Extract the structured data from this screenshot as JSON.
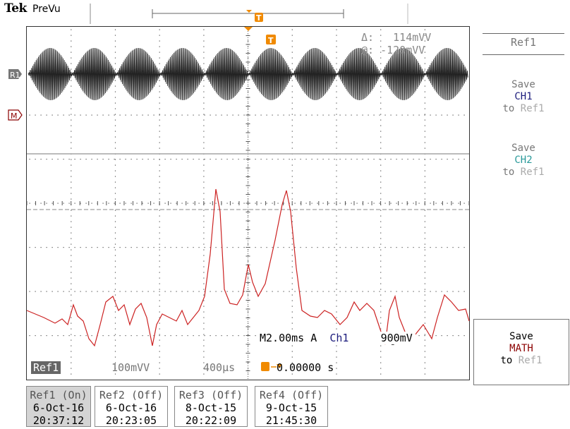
{
  "header": {
    "brand": "Tek",
    "mode": "PreVu"
  },
  "cursor": {
    "delta_label": "Δ:",
    "delta_value": "114mVV",
    "at_label": "@:",
    "at_value": "-120mVV"
  },
  "markers": {
    "ref1_marker": "R1",
    "math_marker": "M",
    "trigger_marker": "T"
  },
  "status": {
    "timebase": "M2.00ms",
    "trigger_mode": "A",
    "trigger_source": "Ch1",
    "trigger_slope": "⌠",
    "trigger_level": "900mV"
  },
  "ref_info": {
    "tag": "Ref1",
    "vscale": "100mVV",
    "hscale": "400µs",
    "trigger_pos_icon": "T→▾",
    "trigger_pos": "0.00000 s"
  },
  "side_menu": {
    "title": "Ref1",
    "save_ch1": {
      "l1": "Save",
      "l2": "CH1",
      "l3": "to",
      "l4": "Ref1"
    },
    "save_ch2": {
      "l1": "Save",
      "l2": "CH2",
      "l3": "to",
      "l4": "Ref1"
    },
    "save_math": {
      "l1": "Save",
      "l2": "MATH",
      "l3": "to",
      "l4": "Ref1"
    }
  },
  "ref_boxes": [
    {
      "name": "Ref1 (On)",
      "date": "6-Oct-16",
      "time": "20:37:12"
    },
    {
      "name": "Ref2 (Off)",
      "date": "6-Oct-16",
      "time": "20:23:05"
    },
    {
      "name": "Ref3 (Off)",
      "date": "8-Oct-15",
      "time": "20:22:09"
    },
    {
      "name": "Ref4 (Off)",
      "date": "9-Oct-15",
      "time": "21:45:30"
    }
  ],
  "colors": {
    "trigger": "#f08a00",
    "math_trace": "#cc2222",
    "ref_trace": "#111111",
    "grid": "#555555"
  }
}
